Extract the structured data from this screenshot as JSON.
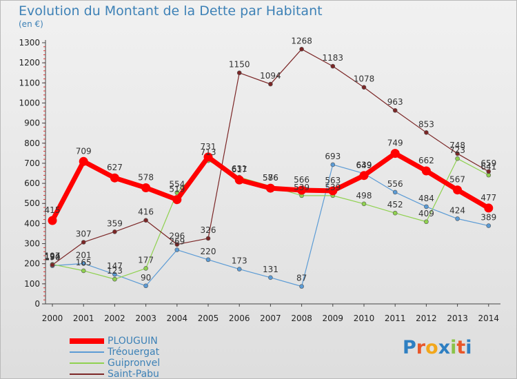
{
  "chart_data": {
    "type": "line",
    "title": "Evolution du Montant de la Dette par Habitant",
    "subtitle": "(en €)",
    "x": [
      2000,
      2001,
      2002,
      2003,
      2004,
      2005,
      2006,
      2007,
      2008,
      2009,
      2010,
      2011,
      2012,
      2013,
      2014
    ],
    "ylim": [
      0,
      1300
    ],
    "yticks": [
      0,
      100,
      200,
      300,
      400,
      500,
      600,
      700,
      800,
      900,
      1000,
      1100,
      1200,
      1300
    ],
    "grid": false,
    "legend_position": "bottom-left",
    "series": [
      {
        "name": "PLOUGUIN",
        "color": "#ff0000",
        "thick": true,
        "values": [
          415,
          709,
          627,
          578,
          519,
          731,
          617,
          576,
          566,
          563,
          639,
          749,
          662,
          567,
          477
        ]
      },
      {
        "name": "Tréouergat",
        "color": "#5b9bd5",
        "thick": false,
        "values": [
          190,
          201,
          147,
          90,
          269,
          220,
          173,
          131,
          87,
          693,
          649,
          556,
          484,
          424,
          389
        ]
      },
      {
        "name": "Guipronvel",
        "color": "#8fd14f",
        "thick": false,
        "values": [
          197,
          165,
          123,
          177,
          554,
          713,
          631,
          586,
          539,
          539,
          498,
          452,
          409,
          723,
          641
        ]
      },
      {
        "name": "Saint-Pabu",
        "color": "#7b2626",
        "thick": false,
        "values": [
          194,
          307,
          359,
          416,
          296,
          326,
          1150,
          1094,
          1268,
          1183,
          1078,
          963,
          853,
          748,
          659
        ]
      }
    ]
  },
  "branding": {
    "logo": "Proxiti"
  }
}
